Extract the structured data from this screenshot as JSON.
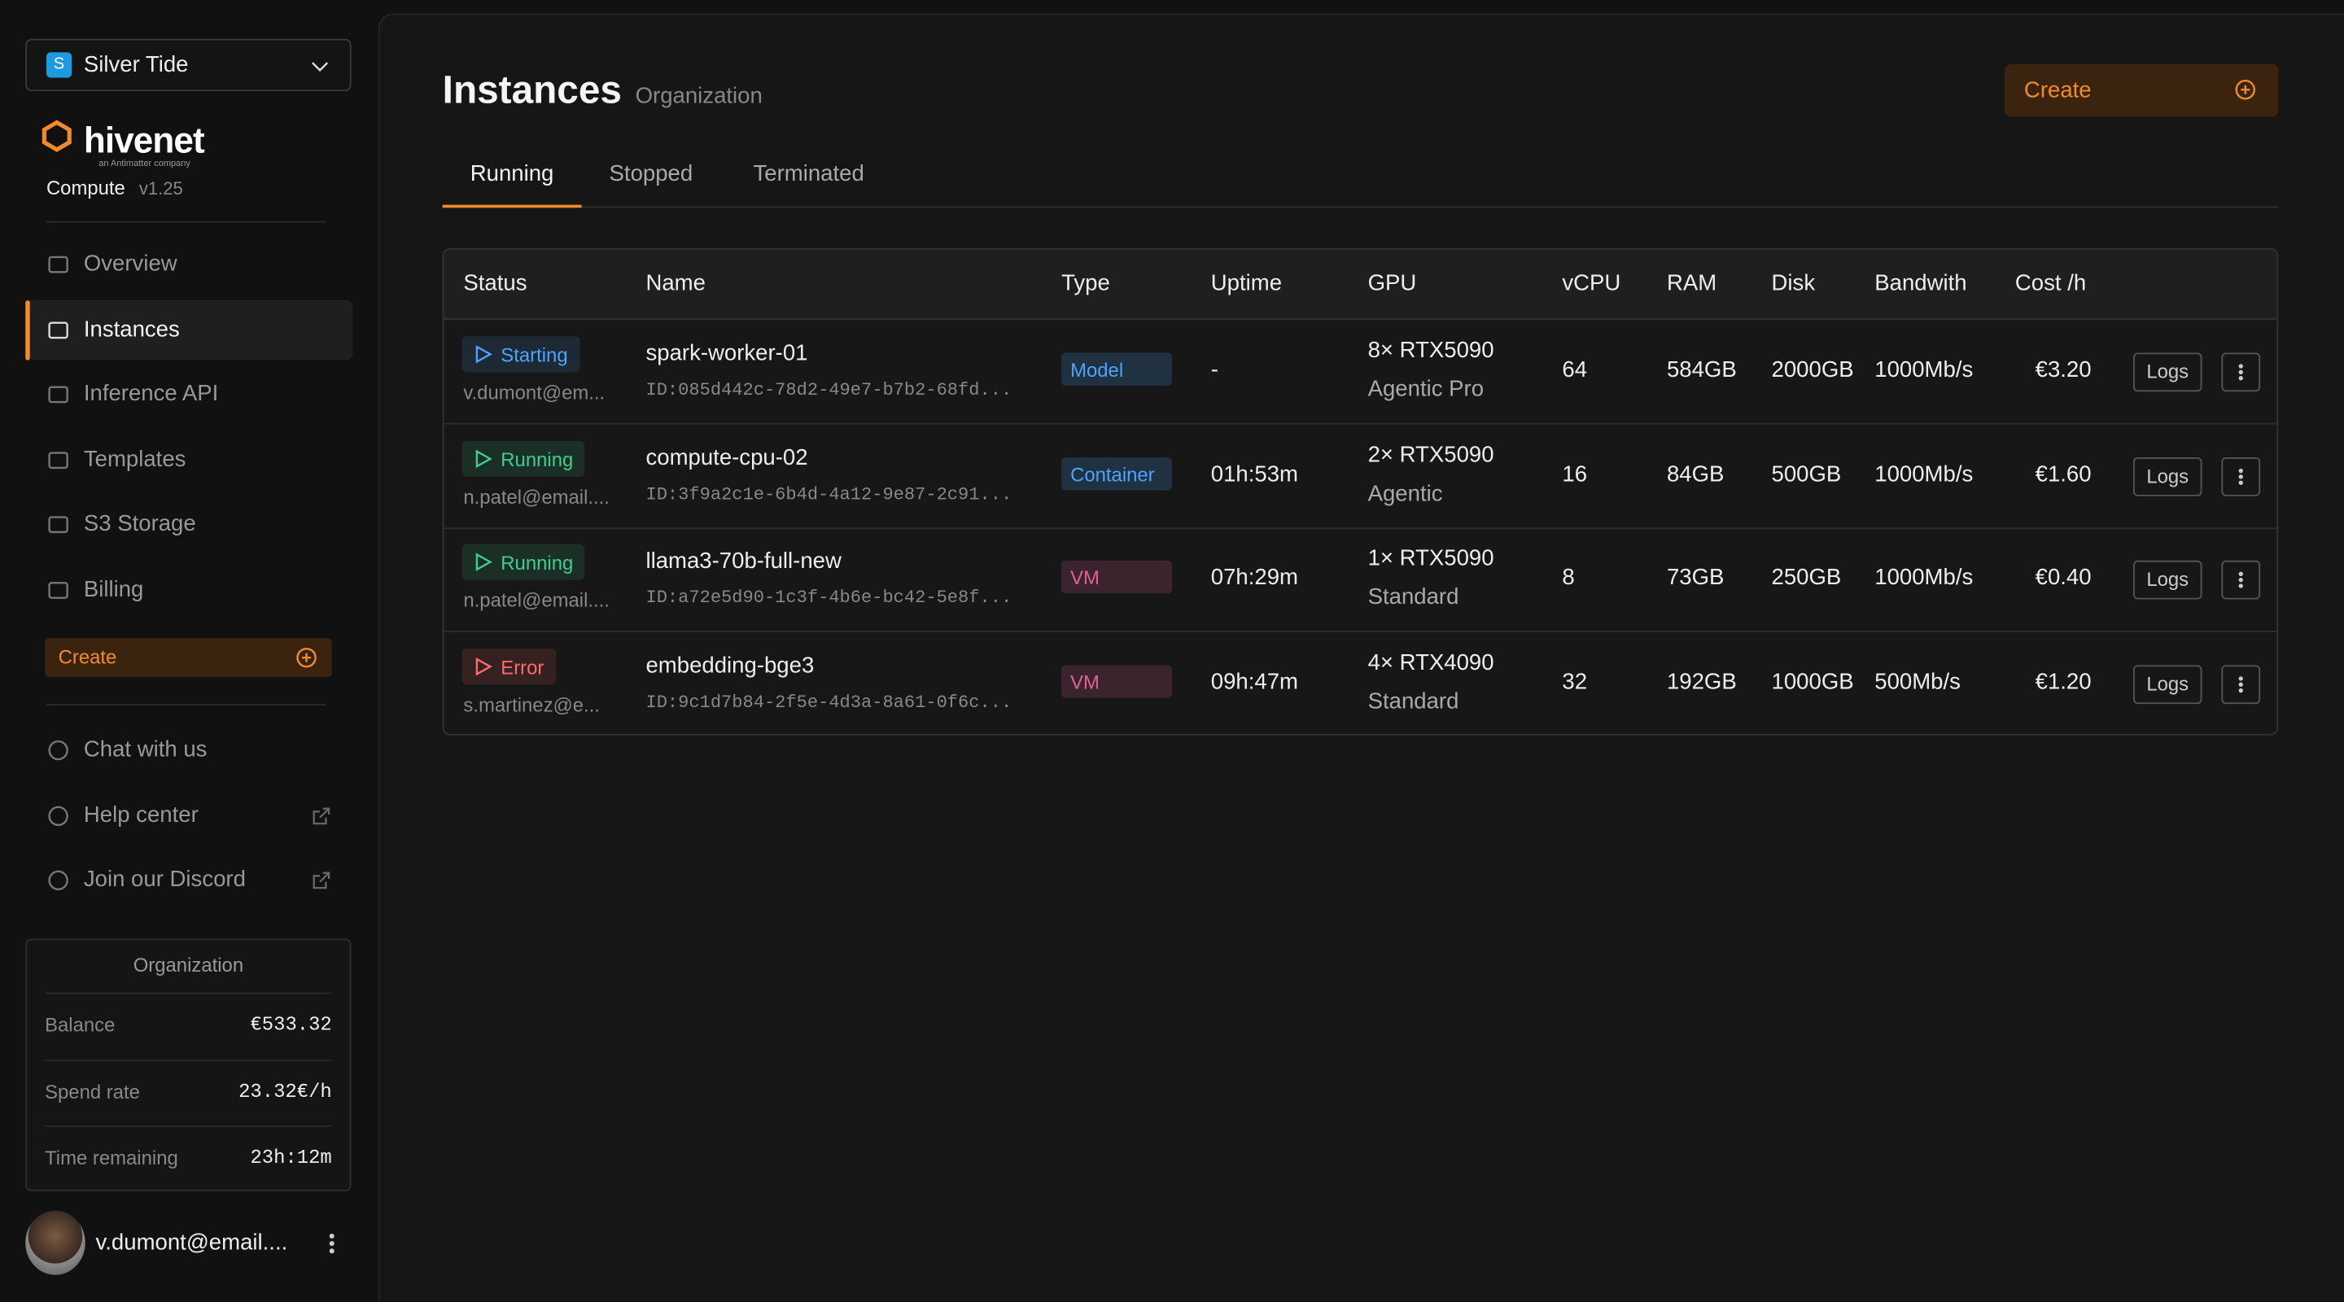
{
  "sidebar": {
    "org_selector": {
      "initial": "S",
      "name": "Silver Tide"
    },
    "brand": {
      "name": "hivenet",
      "tagline": "an Antimatter company",
      "product": "Compute",
      "version": "v1.25"
    },
    "nav": [
      "Overview",
      "Instances",
      "Inference API",
      "Templates",
      "S3 Storage",
      "Billing"
    ],
    "create": "Create",
    "support": [
      "Chat with us",
      "Help center",
      "Join our Discord"
    ],
    "org_panel": {
      "title": "Organization",
      "rows": [
        {
          "label": "Balance",
          "value": "€533.32"
        },
        {
          "label": "Spend rate",
          "value": "23.32€/h"
        },
        {
          "label": "Time remaining",
          "value": "23h:12m"
        }
      ]
    },
    "user": {
      "email": "v.dumont@email...."
    }
  },
  "header": {
    "title": "Instances",
    "subtitle": "Organization",
    "create": "Create"
  },
  "tabs": [
    "Running",
    "Stopped",
    "Terminated"
  ],
  "table": {
    "columns": [
      "Status",
      "Name",
      "Type",
      "Uptime",
      "GPU",
      "vCPU",
      "RAM",
      "Disk",
      "Bandwith",
      "Cost /h"
    ],
    "action_label": "Logs",
    "rows": [
      {
        "status": "Starting",
        "status_color": "#4da3ff",
        "owner": "v.dumont@em...",
        "name": "spark-worker-01",
        "id": "ID:085d442c-78d2-49e7-b7b2-68fd...",
        "type": "Model",
        "type_color": "#4da3ff",
        "uptime": "-",
        "gpu": "8× RTX5090",
        "tier": "Agentic Pro",
        "vcpu": 64,
        "ram": "584GB",
        "disk": "2000GB",
        "bandwidth": "1000Mb/s",
        "cost": "€3.20"
      },
      {
        "status": "Running",
        "status_color": "#3ecf8e",
        "owner": "n.patel@email....",
        "name": "compute-cpu-02",
        "id": "ID:3f9a2c1e-6b4d-4a12-9e87-2c91...",
        "type": "Container",
        "type_color": "#4da3ff",
        "uptime": "01h:53m",
        "gpu": "2× RTX5090",
        "tier": "Agentic",
        "vcpu": 16,
        "ram": "84GB",
        "disk": "500GB",
        "bandwidth": "1000Mb/s",
        "cost": "€1.60"
      },
      {
        "status": "Running",
        "status_color": "#3ecf8e",
        "owner": "n.patel@email....",
        "name": "llama3-70b-full-new",
        "id": "ID:a72e5d90-1c3f-4b6e-bc42-5e8f...",
        "type": "VM",
        "type_color": "#e0609a",
        "uptime": "07h:29m",
        "gpu": "1× RTX5090",
        "tier": "Standard",
        "vcpu": 8,
        "ram": "73GB",
        "disk": "250GB",
        "bandwidth": "1000Mb/s",
        "cost": "€0.40"
      },
      {
        "status": "Error",
        "status_color": "#ff6b6b",
        "owner": "s.martinez@e...",
        "name": "embedding-bge3",
        "id": "ID:9c1d7b84-2f5e-4d3a-8a61-0f6c...",
        "type": "VM",
        "type_color": "#e0609a",
        "uptime": "09h:47m",
        "gpu": "4× RTX4090",
        "tier": "Standard",
        "vcpu": 32,
        "ram": "192GB",
        "disk": "1000GB",
        "bandwidth": "500Mb/s",
        "cost": "€1.20"
      }
    ]
  }
}
